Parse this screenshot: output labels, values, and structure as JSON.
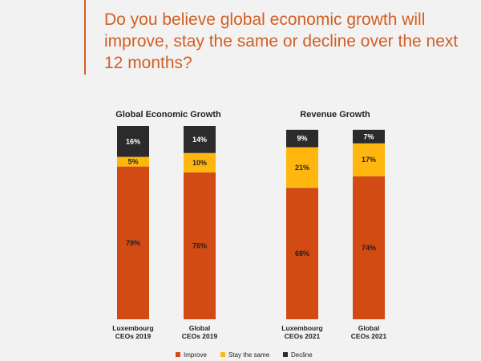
{
  "header": {
    "question": "Do you believe global economic growth will improve, stay the same or decline over the next 12 months?"
  },
  "colors": {
    "Improve": "#d24a14",
    "Stay the same": "#ffb70f",
    "Decline": "#2b2b2b",
    "accent": "#d35f24"
  },
  "chart_data": [
    {
      "type": "bar",
      "stacked": true,
      "title": "Global Economic Growth",
      "categories": [
        [
          "Luxembourg",
          "CEOs 2019"
        ],
        [
          "Global",
          "CEOs 2019"
        ]
      ],
      "series": [
        {
          "name": "Improve",
          "values": [
            79,
            76
          ],
          "labels": [
            "79%",
            "76%"
          ]
        },
        {
          "name": "Stay the same",
          "values": [
            5,
            10
          ],
          "labels": [
            "5%",
            "10%"
          ]
        },
        {
          "name": "Decline",
          "values": [
            16,
            14
          ],
          "labels": [
            "16%",
            "14%"
          ]
        }
      ],
      "ylim": [
        0,
        100
      ]
    },
    {
      "type": "bar",
      "stacked": true,
      "title": "Revenue Growth",
      "categories": [
        [
          "Luxembourg",
          "CEOs 2021"
        ],
        [
          "Global",
          "CEOs 2021"
        ]
      ],
      "series": [
        {
          "name": "Improve",
          "values": [
            68,
            74
          ],
          "labels": [
            "68%",
            "74%"
          ]
        },
        {
          "name": "Stay the same",
          "values": [
            21,
            17
          ],
          "labels": [
            "21%",
            "17%"
          ]
        },
        {
          "name": "Decline",
          "values": [
            9,
            7
          ],
          "labels": [
            "9%",
            "7%"
          ]
        }
      ],
      "ylim": [
        0,
        100
      ]
    }
  ],
  "legend": {
    "items": [
      "Improve",
      "Stay the same",
      "Decline"
    ],
    "placement": "bottom"
  }
}
